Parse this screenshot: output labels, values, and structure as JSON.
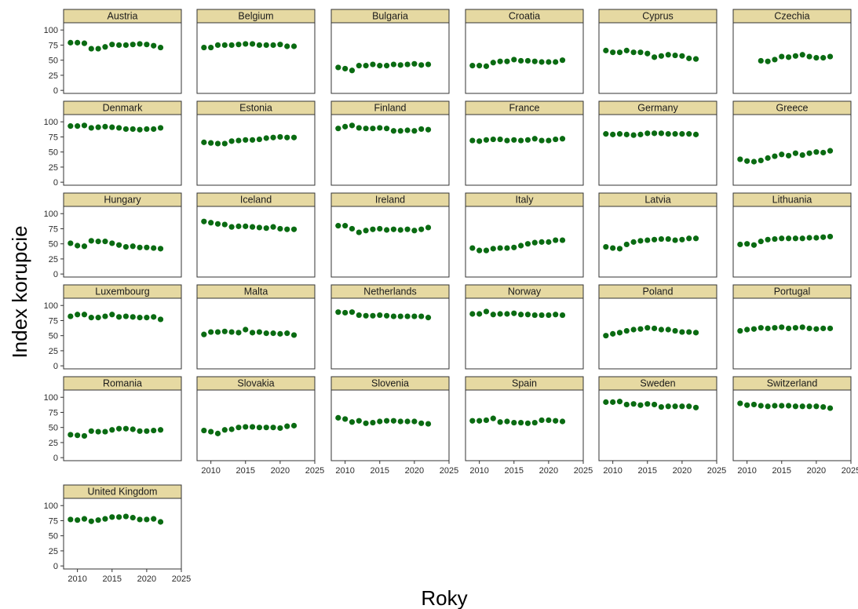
{
  "chart_data": {
    "type": "scatter",
    "layout": "facet-grid",
    "xlabel": "Roky",
    "ylabel": "Index korupcie",
    "xlim": [
      2008,
      2025
    ],
    "ylim": [
      -5,
      112
    ],
    "x_ticks": [
      2010,
      2015,
      2020,
      2025
    ],
    "y_ticks": [
      0,
      25,
      50,
      75,
      100
    ],
    "grid": false,
    "colors": {
      "point": "#0a6b12",
      "strip": "#e6d9a2",
      "frame": "#333333"
    },
    "panels": [
      {
        "name": "Austria",
        "x": [
          2009,
          2010,
          2011,
          2012,
          2013,
          2014,
          2015,
          2016,
          2017,
          2018,
          2019,
          2020,
          2021,
          2022
        ],
        "y": [
          79,
          79,
          78,
          69,
          69,
          72,
          76,
          75,
          75,
          76,
          77,
          76,
          74,
          71
        ]
      },
      {
        "name": "Belgium",
        "x": [
          2009,
          2010,
          2011,
          2012,
          2013,
          2014,
          2015,
          2016,
          2017,
          2018,
          2019,
          2020,
          2021,
          2022
        ],
        "y": [
          71,
          71,
          75,
          75,
          75,
          76,
          77,
          77,
          75,
          75,
          75,
          76,
          73,
          73
        ]
      },
      {
        "name": "Bulgaria",
        "x": [
          2009,
          2010,
          2011,
          2012,
          2013,
          2014,
          2015,
          2016,
          2017,
          2018,
          2019,
          2020,
          2021,
          2022
        ],
        "y": [
          38,
          36,
          33,
          41,
          41,
          43,
          41,
          41,
          43,
          42,
          43,
          44,
          42,
          43
        ]
      },
      {
        "name": "Croatia",
        "x": [
          2009,
          2010,
          2011,
          2012,
          2013,
          2014,
          2015,
          2016,
          2017,
          2018,
          2019,
          2020,
          2021,
          2022
        ],
        "y": [
          41,
          41,
          40,
          46,
          48,
          48,
          51,
          49,
          49,
          48,
          47,
          47,
          47,
          50
        ]
      },
      {
        "name": "Cyprus",
        "x": [
          2009,
          2010,
          2011,
          2012,
          2013,
          2014,
          2015,
          2016,
          2017,
          2018,
          2019,
          2020,
          2021,
          2022
        ],
        "y": [
          66,
          63,
          63,
          66,
          63,
          63,
          61,
          55,
          57,
          59,
          58,
          57,
          53,
          52
        ]
      },
      {
        "name": "Czechia",
        "x": [
          2012,
          2013,
          2014,
          2015,
          2016,
          2017,
          2018,
          2019,
          2020,
          2021,
          2022
        ],
        "y": [
          49,
          48,
          51,
          56,
          55,
          57,
          59,
          56,
          54,
          54,
          56
        ]
      },
      {
        "name": "Denmark",
        "x": [
          2009,
          2010,
          2011,
          2012,
          2013,
          2014,
          2015,
          2016,
          2017,
          2018,
          2019,
          2020,
          2021,
          2022
        ],
        "y": [
          93,
          93,
          94,
          90,
          91,
          92,
          91,
          90,
          88,
          88,
          87,
          88,
          88,
          90
        ]
      },
      {
        "name": "Estonia",
        "x": [
          2009,
          2010,
          2011,
          2012,
          2013,
          2014,
          2015,
          2016,
          2017,
          2018,
          2019,
          2020,
          2021,
          2022
        ],
        "y": [
          66,
          65,
          64,
          64,
          68,
          69,
          70,
          70,
          71,
          73,
          74,
          75,
          74,
          74
        ]
      },
      {
        "name": "Finland",
        "x": [
          2009,
          2010,
          2011,
          2012,
          2013,
          2014,
          2015,
          2016,
          2017,
          2018,
          2019,
          2020,
          2021,
          2022
        ],
        "y": [
          89,
          92,
          94,
          90,
          89,
          89,
          90,
          89,
          85,
          85,
          86,
          85,
          88,
          87
        ]
      },
      {
        "name": "France",
        "x": [
          2009,
          2010,
          2011,
          2012,
          2013,
          2014,
          2015,
          2016,
          2017,
          2018,
          2019,
          2020,
          2021,
          2022
        ],
        "y": [
          69,
          68,
          70,
          71,
          71,
          69,
          70,
          69,
          70,
          72,
          69,
          69,
          71,
          72
        ]
      },
      {
        "name": "Germany",
        "x": [
          2009,
          2010,
          2011,
          2012,
          2013,
          2014,
          2015,
          2016,
          2017,
          2018,
          2019,
          2020,
          2021,
          2022
        ],
        "y": [
          80,
          79,
          80,
          79,
          78,
          79,
          81,
          81,
          81,
          80,
          80,
          80,
          80,
          79
        ]
      },
      {
        "name": "Greece",
        "x": [
          2009,
          2010,
          2011,
          2012,
          2013,
          2014,
          2015,
          2016,
          2017,
          2018,
          2019,
          2020,
          2021,
          2022
        ],
        "y": [
          38,
          35,
          34,
          36,
          40,
          43,
          46,
          44,
          48,
          45,
          48,
          50,
          49,
          52
        ]
      },
      {
        "name": "Hungary",
        "x": [
          2009,
          2010,
          2011,
          2012,
          2013,
          2014,
          2015,
          2016,
          2017,
          2018,
          2019,
          2020,
          2021,
          2022
        ],
        "y": [
          51,
          47,
          46,
          55,
          54,
          54,
          51,
          48,
          45,
          46,
          44,
          44,
          43,
          42
        ]
      },
      {
        "name": "Iceland",
        "x": [
          2009,
          2010,
          2011,
          2012,
          2013,
          2014,
          2015,
          2016,
          2017,
          2018,
          2019,
          2020,
          2021,
          2022
        ],
        "y": [
          87,
          85,
          83,
          82,
          78,
          79,
          79,
          78,
          77,
          76,
          78,
          75,
          74,
          74
        ]
      },
      {
        "name": "Ireland",
        "x": [
          2009,
          2010,
          2011,
          2012,
          2013,
          2014,
          2015,
          2016,
          2017,
          2018,
          2019,
          2020,
          2021,
          2022
        ],
        "y": [
          80,
          80,
          75,
          69,
          72,
          74,
          75,
          73,
          74,
          73,
          74,
          72,
          74,
          77
        ]
      },
      {
        "name": "Italy",
        "x": [
          2009,
          2010,
          2011,
          2012,
          2013,
          2014,
          2015,
          2016,
          2017,
          2018,
          2019,
          2020,
          2021,
          2022
        ],
        "y": [
          43,
          39,
          39,
          42,
          43,
          43,
          44,
          47,
          50,
          52,
          53,
          53,
          56,
          56
        ]
      },
      {
        "name": "Latvia",
        "x": [
          2009,
          2010,
          2011,
          2012,
          2013,
          2014,
          2015,
          2016,
          2017,
          2018,
          2019,
          2020,
          2021,
          2022
        ],
        "y": [
          45,
          43,
          42,
          49,
          53,
          55,
          56,
          57,
          58,
          58,
          56,
          57,
          59,
          59
        ]
      },
      {
        "name": "Lithuania",
        "x": [
          2009,
          2010,
          2011,
          2012,
          2013,
          2014,
          2015,
          2016,
          2017,
          2018,
          2019,
          2020,
          2021,
          2022
        ],
        "y": [
          49,
          50,
          48,
          54,
          57,
          58,
          59,
          59,
          59,
          59,
          60,
          60,
          61,
          62
        ]
      },
      {
        "name": "Luxembourg",
        "x": [
          2009,
          2010,
          2011,
          2012,
          2013,
          2014,
          2015,
          2016,
          2017,
          2018,
          2019,
          2020,
          2021,
          2022
        ],
        "y": [
          82,
          85,
          85,
          80,
          80,
          82,
          85,
          81,
          82,
          81,
          80,
          80,
          81,
          77
        ]
      },
      {
        "name": "Malta",
        "x": [
          2009,
          2010,
          2011,
          2012,
          2013,
          2014,
          2015,
          2016,
          2017,
          2018,
          2019,
          2020,
          2021,
          2022
        ],
        "y": [
          52,
          56,
          56,
          57,
          56,
          55,
          60,
          55,
          56,
          54,
          54,
          53,
          54,
          51
        ]
      },
      {
        "name": "Netherlands",
        "x": [
          2009,
          2010,
          2011,
          2012,
          2013,
          2014,
          2015,
          2016,
          2017,
          2018,
          2019,
          2020,
          2021,
          2022
        ],
        "y": [
          89,
          88,
          89,
          84,
          83,
          83,
          84,
          83,
          82,
          82,
          82,
          82,
          82,
          80
        ]
      },
      {
        "name": "Norway",
        "x": [
          2009,
          2010,
          2011,
          2012,
          2013,
          2014,
          2015,
          2016,
          2017,
          2018,
          2019,
          2020,
          2021,
          2022
        ],
        "y": [
          86,
          86,
          90,
          85,
          86,
          86,
          87,
          85,
          85,
          84,
          84,
          84,
          85,
          84
        ]
      },
      {
        "name": "Poland",
        "x": [
          2009,
          2010,
          2011,
          2012,
          2013,
          2014,
          2015,
          2016,
          2017,
          2018,
          2019,
          2020,
          2021,
          2022
        ],
        "y": [
          50,
          53,
          55,
          58,
          60,
          61,
          63,
          62,
          60,
          60,
          58,
          56,
          56,
          55
        ]
      },
      {
        "name": "Portugal",
        "x": [
          2009,
          2010,
          2011,
          2012,
          2013,
          2014,
          2015,
          2016,
          2017,
          2018,
          2019,
          2020,
          2021,
          2022
        ],
        "y": [
          58,
          60,
          61,
          63,
          62,
          63,
          64,
          62,
          63,
          64,
          62,
          61,
          62,
          62
        ]
      },
      {
        "name": "Romania",
        "x": [
          2009,
          2010,
          2011,
          2012,
          2013,
          2014,
          2015,
          2016,
          2017,
          2018,
          2019,
          2020,
          2021,
          2022
        ],
        "y": [
          38,
          37,
          36,
          44,
          43,
          43,
          46,
          48,
          48,
          47,
          44,
          44,
          45,
          46
        ]
      },
      {
        "name": "Slovakia",
        "x": [
          2009,
          2010,
          2011,
          2012,
          2013,
          2014,
          2015,
          2016,
          2017,
          2018,
          2019,
          2020,
          2021,
          2022
        ],
        "y": [
          45,
          43,
          40,
          46,
          47,
          50,
          51,
          51,
          50,
          50,
          50,
          49,
          52,
          53
        ]
      },
      {
        "name": "Slovenia",
        "x": [
          2009,
          2010,
          2011,
          2012,
          2013,
          2014,
          2015,
          2016,
          2017,
          2018,
          2019,
          2020,
          2021,
          2022
        ],
        "y": [
          66,
          64,
          59,
          61,
          57,
          58,
          60,
          61,
          61,
          60,
          60,
          60,
          57,
          56
        ]
      },
      {
        "name": "Spain",
        "x": [
          2009,
          2010,
          2011,
          2012,
          2013,
          2014,
          2015,
          2016,
          2017,
          2018,
          2019,
          2020,
          2021,
          2022
        ],
        "y": [
          61,
          61,
          62,
          65,
          59,
          60,
          58,
          58,
          57,
          58,
          62,
          62,
          61,
          60
        ]
      },
      {
        "name": "Sweden",
        "x": [
          2009,
          2010,
          2011,
          2012,
          2013,
          2014,
          2015,
          2016,
          2017,
          2018,
          2019,
          2020,
          2021,
          2022
        ],
        "y": [
          92,
          92,
          93,
          88,
          89,
          87,
          89,
          88,
          84,
          85,
          85,
          85,
          85,
          83
        ]
      },
      {
        "name": "Switzerland",
        "x": [
          2009,
          2010,
          2011,
          2012,
          2013,
          2014,
          2015,
          2016,
          2017,
          2018,
          2019,
          2020,
          2021,
          2022
        ],
        "y": [
          90,
          87,
          88,
          86,
          85,
          86,
          86,
          86,
          85,
          85,
          85,
          85,
          84,
          82
        ]
      },
      {
        "name": "United Kingdom",
        "x": [
          2009,
          2010,
          2011,
          2012,
          2013,
          2014,
          2015,
          2016,
          2017,
          2018,
          2019,
          2020,
          2021,
          2022
        ],
        "y": [
          77,
          76,
          78,
          74,
          76,
          78,
          81,
          81,
          82,
          80,
          77,
          77,
          78,
          73
        ]
      }
    ]
  }
}
